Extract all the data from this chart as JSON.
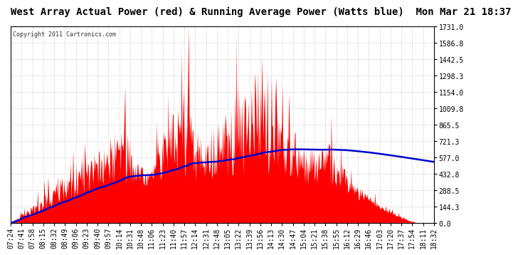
{
  "title": "West Array Actual Power (red) & Running Average Power (Watts blue)  Mon Mar 21 18:37",
  "copyright": "Copyright 2011 Cartronics.com",
  "y_tick_values": [
    0.0,
    144.3,
    288.5,
    432.8,
    577.0,
    721.3,
    865.5,
    1009.8,
    1154.0,
    1298.3,
    1442.5,
    1586.8,
    1731.0
  ],
  "y_max": 1731.0,
  "y_min": 0.0,
  "x_labels": [
    "07:24",
    "07:41",
    "07:58",
    "08:15",
    "08:32",
    "08:49",
    "09:06",
    "09:23",
    "09:40",
    "09:57",
    "10:14",
    "10:31",
    "10:48",
    "11:06",
    "11:23",
    "11:40",
    "11:57",
    "12:14",
    "12:31",
    "12:48",
    "13:05",
    "13:22",
    "13:39",
    "13:56",
    "14:13",
    "14:30",
    "14:47",
    "15:04",
    "15:21",
    "15:38",
    "15:55",
    "16:12",
    "16:29",
    "16:46",
    "17:03",
    "17:20",
    "17:37",
    "17:54",
    "18:11",
    "18:32"
  ],
  "bg_color": "#ffffff",
  "plot_bg_color": "#ffffff",
  "grid_color": "#bbbbbb",
  "fill_color": "#ff0000",
  "line_color": "#0000cc",
  "title_fontsize": 10,
  "copyright_fontsize": 6,
  "tick_fontsize": 7
}
